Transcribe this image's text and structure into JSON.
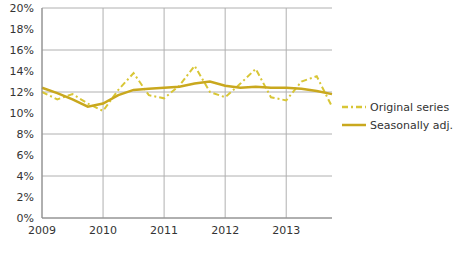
{
  "chart_data": {
    "type": "line",
    "categories": [
      "2009",
      null,
      null,
      null,
      "2010",
      null,
      null,
      null,
      "2011",
      null,
      null,
      null,
      "2012",
      null,
      null,
      null,
      "2013",
      null,
      null,
      null
    ],
    "series": [
      {
        "name": "Original series",
        "color": "#d8c636",
        "line_style": "dashdot",
        "values": [
          12.0,
          11.3,
          11.8,
          10.9,
          10.2,
          12.2,
          13.8,
          11.7,
          11.4,
          12.6,
          14.5,
          12.0,
          11.5,
          12.8,
          14.2,
          11.5,
          11.2,
          13.0,
          13.5,
          10.6
        ]
      },
      {
        "name": "Seasonally adj.",
        "color": "#c9a81e",
        "line_style": "solid",
        "values": [
          12.4,
          11.9,
          11.3,
          10.6,
          10.9,
          11.7,
          12.2,
          12.3,
          12.4,
          12.5,
          12.8,
          13.0,
          12.6,
          12.4,
          12.5,
          12.4,
          12.4,
          12.3,
          12.1,
          11.8
        ]
      }
    ],
    "ylim": [
      0,
      20
    ],
    "yticks": [
      {
        "value": 0,
        "label": "0%"
      },
      {
        "value": 2,
        "label": "2%"
      },
      {
        "value": 4,
        "label": "4%"
      },
      {
        "value": 6,
        "label": "6%"
      },
      {
        "value": 8,
        "label": "8%"
      },
      {
        "value": 10,
        "label": "10%"
      },
      {
        "value": 12,
        "label": "12%"
      },
      {
        "value": 14,
        "label": "14%"
      },
      {
        "value": 16,
        "label": "16%"
      },
      {
        "value": 18,
        "label": "18%"
      },
      {
        "value": 20,
        "label": "20%"
      }
    ],
    "grid": true,
    "legend": "right"
  }
}
